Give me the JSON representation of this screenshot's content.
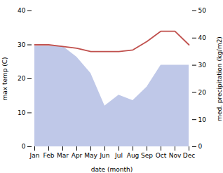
{
  "chart_data": {
    "type": "line",
    "categories": [
      "Jan",
      "Feb",
      "Mar",
      "Apr",
      "May",
      "Jun",
      "Jul",
      "Aug",
      "Sep",
      "Oct",
      "Nov",
      "Dec"
    ],
    "xlabel": "date (month)",
    "ylabel": "max temp (C)",
    "y2label": "med. precipitation (kg/m2)",
    "ylim": [
      0,
      40
    ],
    "yticks": [
      0,
      10,
      20,
      30,
      40
    ],
    "y2lim": [
      0,
      50
    ],
    "y2ticks": [
      0,
      10,
      20,
      30,
      40,
      50
    ],
    "grid": false,
    "series": [
      {
        "type": "area",
        "axis": "y2",
        "color": "#bfc8e8",
        "values": [
          37,
          37,
          37,
          33,
          27,
          15,
          19,
          17,
          22,
          30,
          30,
          30
        ]
      },
      {
        "type": "line",
        "color": "#c0504d",
        "values": [
          30,
          30,
          29.5,
          29,
          28,
          28,
          28,
          28.5,
          31,
          34,
          34,
          30
        ]
      }
    ]
  }
}
